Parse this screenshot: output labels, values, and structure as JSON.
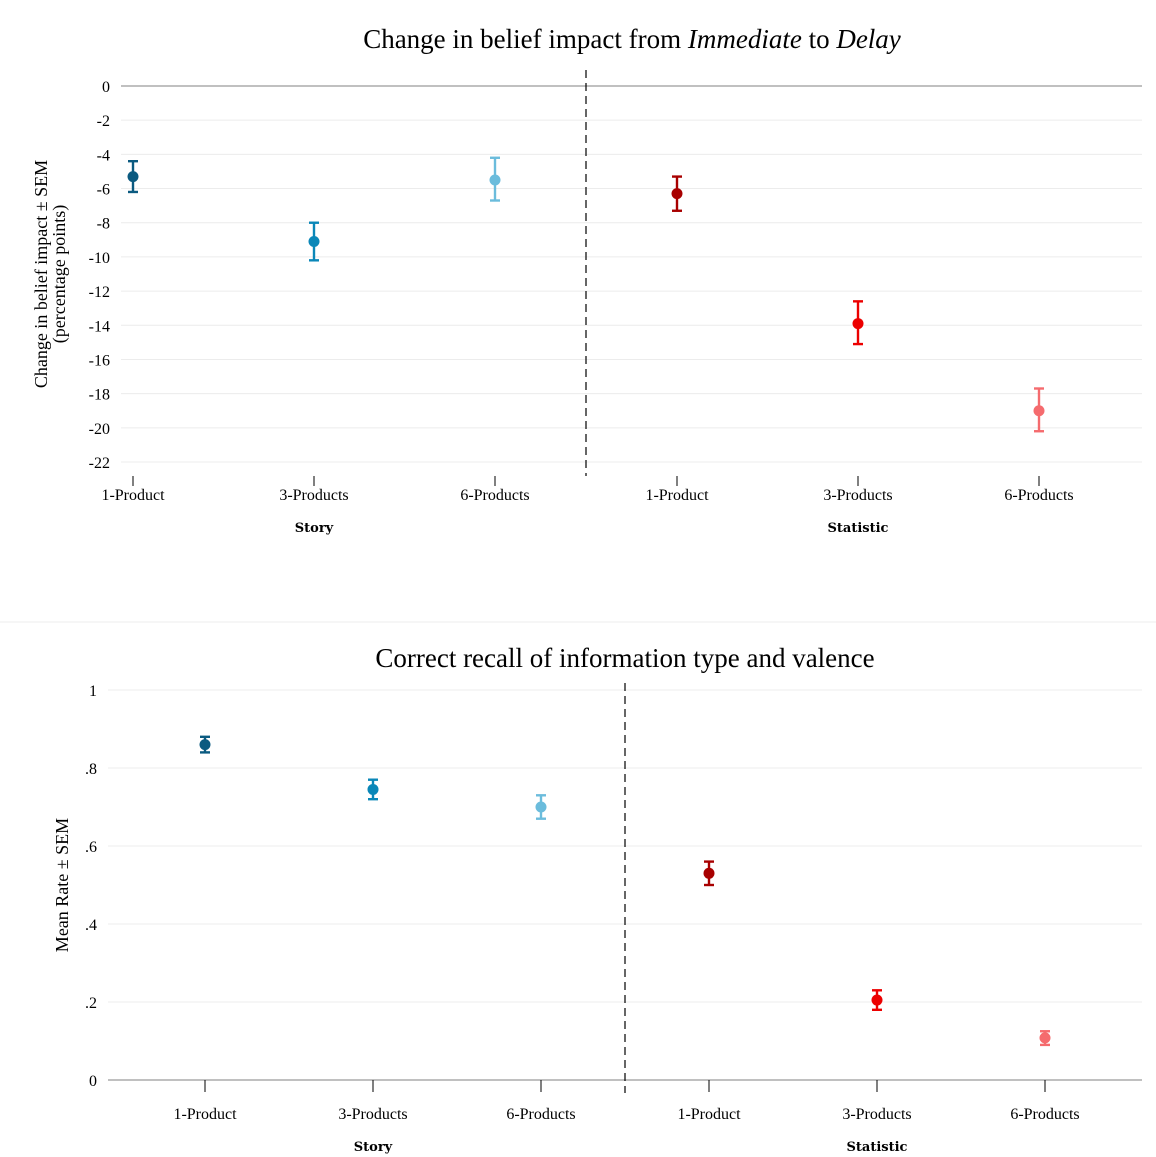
{
  "chart_data": [
    {
      "type": "scatter",
      "title_parts": [
        {
          "text": "Change in belief impact from ",
          "italic": false
        },
        {
          "text": "Immediate",
          "italic": true
        },
        {
          "text": " to ",
          "italic": false
        },
        {
          "text": "Delay",
          "italic": true
        }
      ],
      "ylabel_lines": [
        "Change in belief impact ± SEM",
        "(percentage points)"
      ],
      "ylim": [
        -22,
        0
      ],
      "yticks": [
        0,
        -2,
        -4,
        -6,
        -8,
        -10,
        -12,
        -14,
        -16,
        -18,
        -20,
        -22
      ],
      "ytick_labels": [
        "0",
        "-2",
        "-4",
        "-6",
        "-8",
        "-10",
        "-12",
        "-14",
        "-16",
        "-18",
        "-20",
        "-22"
      ],
      "grid": true,
      "groups": [
        {
          "name": "Story",
          "points": [
            {
              "label": "1-Product",
              "mean": -5.3,
              "low": -6.2,
              "high": -4.4,
              "color": "#0b5a80"
            },
            {
              "label": "3-Products",
              "mean": -9.1,
              "low": -10.2,
              "high": -8.0,
              "color": "#0a87b8"
            },
            {
              "label": "6-Products",
              "mean": -5.5,
              "low": -6.7,
              "high": -4.2,
              "color": "#6bbcdc"
            }
          ]
        },
        {
          "name": "Statistic",
          "points": [
            {
              "label": "1-Product",
              "mean": -6.3,
              "low": -7.3,
              "high": -5.3,
              "color": "#a80000"
            },
            {
              "label": "3-Products",
              "mean": -13.9,
              "low": -15.1,
              "high": -12.6,
              "color": "#ec0000"
            },
            {
              "label": "6-Products",
              "mean": -19.0,
              "low": -20.2,
              "high": -17.7,
              "color": "#f56b6e"
            }
          ]
        }
      ]
    },
    {
      "type": "scatter",
      "title_parts": [
        {
          "text": "Correct recall of information type and valence",
          "italic": false
        }
      ],
      "ylabel_lines": [
        "Mean Rate  ± SEM"
      ],
      "ylim": [
        0,
        1
      ],
      "yticks": [
        0,
        0.2,
        0.4,
        0.6,
        0.8,
        1
      ],
      "ytick_labels": [
        "0",
        ".2",
        ".4",
        ".6",
        ".8",
        "1"
      ],
      "grid": true,
      "groups": [
        {
          "name": "Story",
          "points": [
            {
              "label": "1-Product",
              "mean": 0.86,
              "low": 0.84,
              "high": 0.88,
              "color": "#0b5a80"
            },
            {
              "label": "3-Products",
              "mean": 0.745,
              "low": 0.72,
              "high": 0.77,
              "color": "#0a87b8"
            },
            {
              "label": "6-Products",
              "mean": 0.7,
              "low": 0.67,
              "high": 0.73,
              "color": "#6bbcdc"
            }
          ]
        },
        {
          "name": "Statistic",
          "points": [
            {
              "label": "1-Product",
              "mean": 0.53,
              "low": 0.5,
              "high": 0.56,
              "color": "#a80000"
            },
            {
              "label": "3-Products",
              "mean": 0.205,
              "low": 0.18,
              "high": 0.23,
              "color": "#ec0000"
            },
            {
              "label": "6-Products",
              "mean": 0.108,
              "low": 0.09,
              "high": 0.125,
              "color": "#f56b6e"
            }
          ]
        }
      ]
    }
  ]
}
